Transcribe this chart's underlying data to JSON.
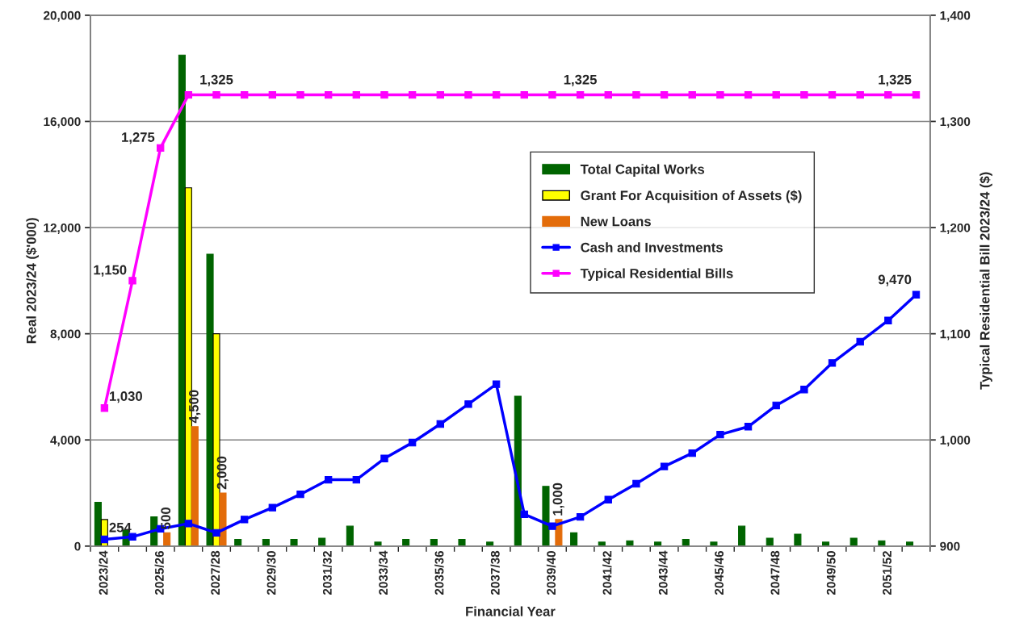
{
  "chart_data": {
    "type": "bar",
    "xlabel": "Financial Year",
    "ylabel": "Real 2023/24 ($'000)",
    "y2label": "Typical Residential Bill 2023/24 ($)",
    "categories": [
      "2023/24",
      null,
      "2025/26",
      null,
      "2027/28",
      null,
      "2029/30",
      null,
      "2031/32",
      null,
      "2033/34",
      null,
      "2035/36",
      null,
      "2037/38",
      null,
      "2039/40",
      null,
      "2041/42",
      null,
      "2043/44",
      null,
      "2045/46",
      null,
      "2047/48",
      null,
      "2049/50",
      null,
      "2051/52",
      null
    ],
    "series": [
      {
        "name": "Total Capital Works",
        "color": "#006400",
        "values": [
          1650,
          600,
          1100,
          18500,
          11000,
          250,
          250,
          250,
          300,
          750,
          150,
          250,
          250,
          250,
          150,
          5650,
          2250,
          500,
          150,
          200,
          150,
          250,
          150,
          750,
          300,
          450,
          150,
          300,
          200,
          150
        ]
      },
      {
        "name": "Grant For Acquisition of Assets ($)",
        "color": "#ffff00",
        "values": [
          1000,
          null,
          null,
          13500,
          8000,
          null,
          null,
          null,
          null,
          null,
          null,
          null,
          null,
          null,
          null,
          null,
          null,
          null,
          null,
          null,
          null,
          null,
          null,
          null,
          null,
          null,
          null,
          null,
          null,
          null
        ]
      },
      {
        "name": "New Loans",
        "color": "#e36c0a",
        "values": [
          null,
          null,
          500,
          4500,
          2000,
          null,
          null,
          null,
          null,
          null,
          null,
          null,
          null,
          null,
          null,
          null,
          1000,
          null,
          null,
          null,
          null,
          null,
          null,
          null,
          null,
          null,
          null,
          null,
          null,
          null
        ],
        "value_labels": [
          null,
          null,
          "500",
          "4,500",
          "2,000",
          null,
          null,
          null,
          null,
          null,
          null,
          null,
          null,
          null,
          null,
          null,
          "1,000",
          null,
          null,
          null,
          null,
          null,
          null,
          null,
          null,
          null,
          null,
          null,
          null,
          null
        ]
      },
      {
        "name": "Cash and Investments",
        "type": "line",
        "color": "#0000ff",
        "values": [
          254,
          350,
          650,
          850,
          500,
          1000,
          1450,
          1950,
          2500,
          2500,
          3300,
          3900,
          4600,
          5350,
          6100,
          1200,
          750,
          1100,
          1750,
          2350,
          3000,
          3500,
          4200,
          4500,
          5300,
          5900,
          6900,
          7700,
          8500,
          9470
        ],
        "value_labels": [
          "254",
          null,
          null,
          null,
          null,
          null,
          null,
          null,
          null,
          null,
          null,
          null,
          null,
          null,
          null,
          null,
          null,
          null,
          null,
          null,
          null,
          null,
          null,
          null,
          null,
          null,
          null,
          null,
          null,
          "9,470"
        ]
      },
      {
        "name": "Typical Residential Bills",
        "type": "line",
        "axis": "y2",
        "color": "#ff00ff",
        "values": [
          1030,
          1150,
          1275,
          1325,
          1325,
          1325,
          1325,
          1325,
          1325,
          1325,
          1325,
          1325,
          1325,
          1325,
          1325,
          1325,
          1325,
          1325,
          1325,
          1325,
          1325,
          1325,
          1325,
          1325,
          1325,
          1325,
          1325,
          1325,
          1325,
          1325
        ],
        "value_labels": [
          "1,030",
          "1,150",
          "1,275",
          null,
          "1,325",
          null,
          null,
          null,
          null,
          null,
          null,
          null,
          null,
          null,
          null,
          null,
          null,
          "1,325",
          null,
          null,
          null,
          null,
          null,
          null,
          null,
          null,
          null,
          null,
          null,
          "1,325"
        ]
      }
    ],
    "ylim": [
      0,
      20000
    ],
    "yticks": [
      {
        "value": 0,
        "label": "0"
      },
      {
        "value": 4000,
        "label": "4,000"
      },
      {
        "value": 8000,
        "label": "8,000"
      },
      {
        "value": 12000,
        "label": "12,000"
      },
      {
        "value": 16000,
        "label": "16,000"
      },
      {
        "value": 20000,
        "label": "20,000"
      }
    ],
    "y2lim": [
      900,
      1400
    ],
    "y2ticks": [
      {
        "value": 900,
        "label": "900"
      },
      {
        "value": 1000,
        "label": "1,000"
      },
      {
        "value": 1100,
        "label": "1,100"
      },
      {
        "value": 1200,
        "label": "1,200"
      },
      {
        "value": 1300,
        "label": "1,300"
      },
      {
        "value": 1400,
        "label": "1,400"
      }
    ],
    "grid": "y",
    "legend": "top right",
    "marker": "square",
    "line_style": "solid"
  }
}
